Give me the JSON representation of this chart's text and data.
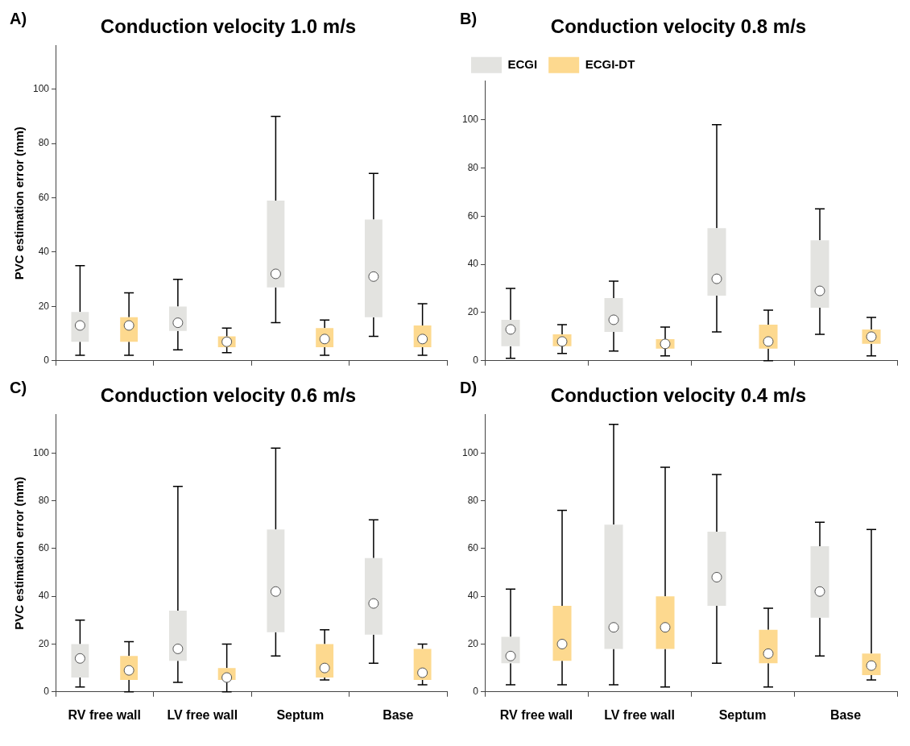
{
  "chart_data": [
    {
      "type": "box",
      "title": "Conduction velocity 1.0 m/s",
      "annotations": [
        "A)"
      ],
      "ylabel": "PVC estimation error (mm)",
      "categories": [
        null,
        null,
        null,
        null
      ],
      "ylim": [
        0,
        116
      ],
      "yticks": [
        0,
        20,
        40,
        60,
        80,
        100
      ],
      "tick_labels": "y",
      "series": [
        {
          "color": "#e3e3e0",
          "boxes": [
            {
              "low": 2,
              "q1": 7,
              "median": 13,
              "q3": 18,
              "high": 35
            },
            {
              "low": 4,
              "q1": 11,
              "median": 14,
              "q3": 20,
              "high": 30
            },
            {
              "low": 14,
              "q1": 27,
              "median": 32,
              "q3": 59,
              "high": 90
            },
            {
              "low": 9,
              "q1": 16,
              "median": 31,
              "q3": 52,
              "high": 69
            }
          ]
        },
        {
          "color": "#fdd98f",
          "boxes": [
            {
              "low": 2,
              "q1": 7,
              "median": 13,
              "q3": 16,
              "high": 25
            },
            {
              "low": 3,
              "q1": 5,
              "median": 7,
              "q3": 9,
              "high": 12
            },
            {
              "low": 2,
              "q1": 5,
              "median": 8,
              "q3": 12,
              "high": 15
            },
            {
              "low": 2,
              "q1": 5,
              "median": 8,
              "q3": 13,
              "high": 21
            }
          ]
        }
      ]
    },
    {
      "type": "box",
      "title": "Conduction velocity 0.8 m/s",
      "annotations": [
        "B)"
      ],
      "categories": [
        null,
        null,
        null,
        null
      ],
      "ylim": [
        0,
        116
      ],
      "yticks": [
        0,
        20,
        40,
        60,
        80,
        100
      ],
      "tick_labels": "y",
      "legend": "top left",
      "series": [
        {
          "name": "ECGI",
          "color": "#e3e3e0",
          "boxes": [
            {
              "low": 1,
              "q1": 6,
              "median": 13,
              "q3": 17,
              "high": 30
            },
            {
              "low": 4,
              "q1": 12,
              "median": 17,
              "q3": 26,
              "high": 33
            },
            {
              "low": 12,
              "q1": 27,
              "median": 34,
              "q3": 55,
              "high": 98
            },
            {
              "low": 11,
              "q1": 22,
              "median": 29,
              "q3": 50,
              "high": 63
            }
          ]
        },
        {
          "name": "ECGI-DT",
          "color": "#fdd98f",
          "boxes": [
            {
              "low": 3,
              "q1": 6,
              "median": 8,
              "q3": 11,
              "high": 15
            },
            {
              "low": 2,
              "q1": 5,
              "median": 7,
              "q3": 9,
              "high": 14
            },
            {
              "low": 0,
              "q1": 5,
              "median": 8,
              "q3": 15,
              "high": 21
            },
            {
              "low": 2,
              "q1": 7,
              "median": 10,
              "q3": 13,
              "high": 18
            }
          ]
        }
      ]
    },
    {
      "type": "box",
      "title": "Conduction velocity 0.6 m/s",
      "annotations": [
        "C)"
      ],
      "ylabel": "PVC estimation error (mm)",
      "categories": [
        "RV free wall",
        "LV free wall",
        "Septum",
        "Base"
      ],
      "ylim": [
        0,
        116
      ],
      "yticks": [
        0,
        20,
        40,
        60,
        80,
        100
      ],
      "series": [
        {
          "color": "#e3e3e0",
          "boxes": [
            {
              "low": 2,
              "q1": 6,
              "median": 14,
              "q3": 20,
              "high": 30
            },
            {
              "low": 4,
              "q1": 13,
              "median": 18,
              "q3": 34,
              "high": 86
            },
            {
              "low": 15,
              "q1": 25,
              "median": 42,
              "q3": 68,
              "high": 102
            },
            {
              "low": 12,
              "q1": 24,
              "median": 37,
              "q3": 56,
              "high": 72
            }
          ]
        },
        {
          "color": "#fdd98f",
          "boxes": [
            {
              "low": 0,
              "q1": 5,
              "median": 9,
              "q3": 15,
              "high": 21
            },
            {
              "low": 0,
              "q1": 5,
              "median": 6,
              "q3": 10,
              "high": 20
            },
            {
              "low": 5,
              "q1": 6,
              "median": 10,
              "q3": 20,
              "high": 26
            },
            {
              "low": 3,
              "q1": 5,
              "median": 8,
              "q3": 18,
              "high": 20
            }
          ]
        }
      ]
    },
    {
      "type": "box",
      "title": "Conduction velocity 0.4 m/s",
      "annotations": [
        "D)"
      ],
      "categories": [
        "RV free wall",
        "LV free wall",
        "Septum",
        "Base"
      ],
      "ylim": [
        0,
        116
      ],
      "yticks": [
        0,
        20,
        40,
        60,
        80,
        100
      ],
      "series": [
        {
          "color": "#e3e3e0",
          "boxes": [
            {
              "low": 3,
              "q1": 12,
              "median": 15,
              "q3": 23,
              "high": 43
            },
            {
              "low": 3,
              "q1": 18,
              "median": 27,
              "q3": 70,
              "high": 112
            },
            {
              "low": 12,
              "q1": 36,
              "median": 48,
              "q3": 67,
              "high": 91
            },
            {
              "low": 15,
              "q1": 31,
              "median": 42,
              "q3": 61,
              "high": 71
            }
          ]
        },
        {
          "color": "#fdd98f",
          "boxes": [
            {
              "low": 3,
              "q1": 13,
              "median": 20,
              "q3": 36,
              "high": 76
            },
            {
              "low": 2,
              "q1": 18,
              "median": 27,
              "q3": 40,
              "high": 94
            },
            {
              "low": 2,
              "q1": 12,
              "median": 16,
              "q3": 26,
              "high": 35
            },
            {
              "low": 5,
              "q1": 7,
              "median": 11,
              "q3": 16,
              "high": 68
            }
          ]
        }
      ]
    }
  ]
}
